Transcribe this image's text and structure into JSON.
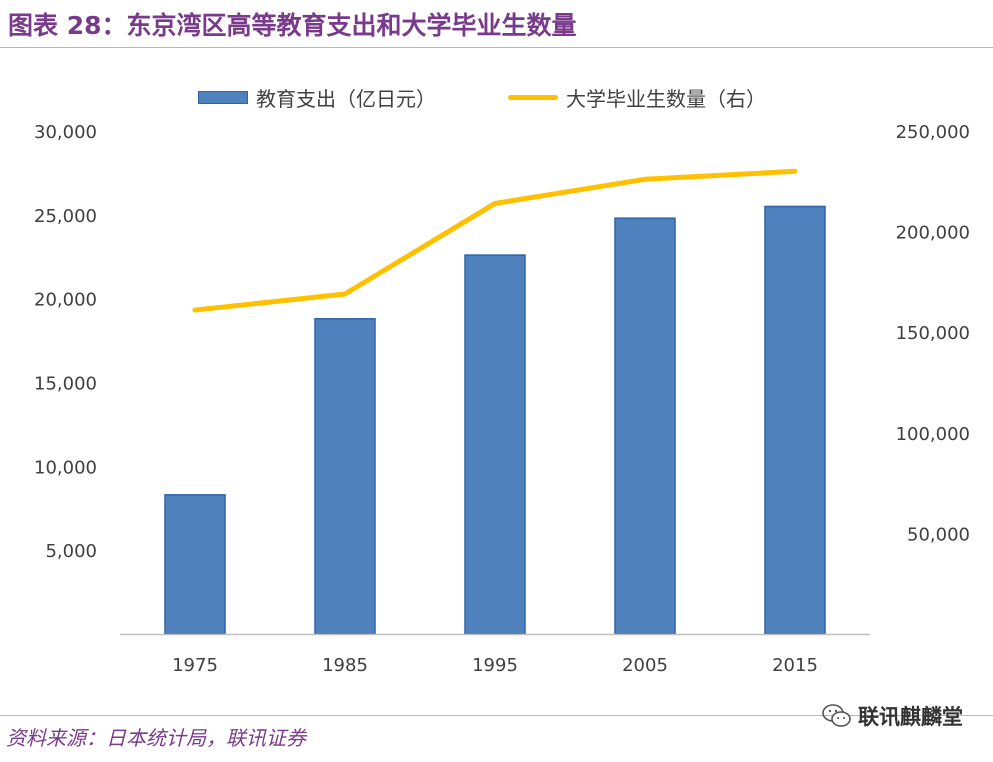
{
  "title": "图表 28：东京湾区高等教育支出和大学毕业生数量",
  "source": "资料来源：日本统计局，联讯证券",
  "watermark": "联讯麒麟堂",
  "chart_data": {
    "type": "bar+line",
    "title": "东京湾区高等教育支出和大学毕业生数量",
    "categories": [
      "1975",
      "1985",
      "1995",
      "2005",
      "2015"
    ],
    "series": [
      {
        "name": "教育支出（亿日元）",
        "type": "bar",
        "axis": "left",
        "color": "#4f81bd",
        "values": [
          8300,
          18800,
          22600,
          24800,
          25500
        ]
      },
      {
        "name": "大学毕业生数量（右）",
        "type": "line",
        "axis": "right",
        "color": "#ffc000",
        "values": [
          161000,
          169000,
          214000,
          226000,
          230000
        ]
      }
    ],
    "left_axis": {
      "ticks": [
        "5,000",
        "10,000",
        "15,000",
        "20,000",
        "25,000",
        "30,000"
      ],
      "min": 0,
      "max": 30000
    },
    "right_axis": {
      "ticks": [
        "50,000",
        "100,000",
        "150,000",
        "200,000",
        "250,000"
      ],
      "min": 0,
      "max": 250000
    },
    "grid": false,
    "legend_position": "top"
  }
}
